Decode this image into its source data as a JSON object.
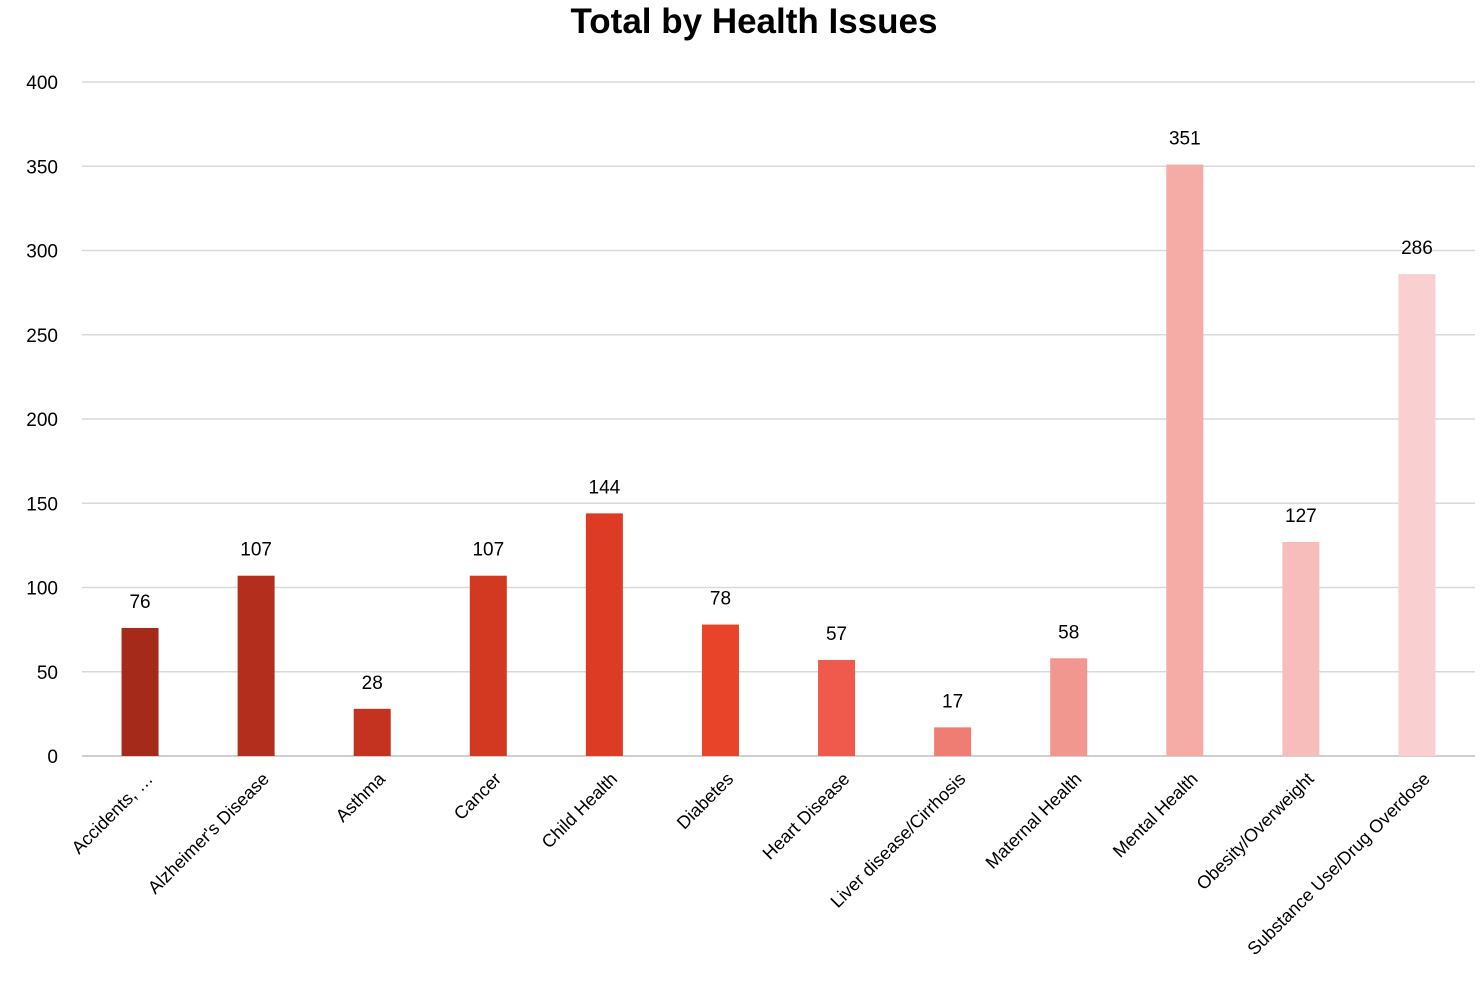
{
  "chart_data": {
    "type": "bar",
    "title": "Total by Health Issues",
    "xlabel": "",
    "ylabel": "",
    "ylim": [
      0,
      400
    ],
    "yticks": [
      0,
      50,
      100,
      150,
      200,
      250,
      300,
      350,
      400
    ],
    "grid": true,
    "legend": "none",
    "categories": [
      "Accidents, …",
      "Alzheimer's Disease",
      "Asthma",
      "Cancer",
      "Child Health",
      "Diabetes",
      "Heart Disease",
      "Liver disease/Cirrhosis",
      "Maternal Health",
      "Mental Health",
      "Obesity/Overweight",
      "Substance Use/Drug Overdose"
    ],
    "values": [
      76,
      107,
      28,
      107,
      144,
      78,
      57,
      17,
      58,
      351,
      127,
      286
    ],
    "colors": [
      "#a52a1a",
      "#b42e1d",
      "#c4331f",
      "#d33921",
      "#de3b24",
      "#e84429",
      "#ef5a4c",
      "#f07d74",
      "#f29790",
      "#f5aba6",
      "#f7bdba",
      "#f9d0cf"
    ]
  }
}
